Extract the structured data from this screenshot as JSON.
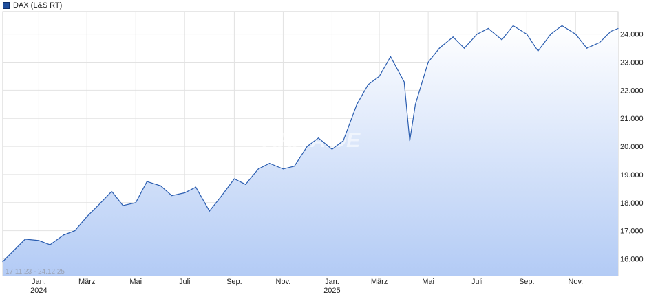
{
  "legend": {
    "label": "DAX (L&S RT)",
    "color": "#1f4e9c"
  },
  "date_range": "17.11.23 - 24.12.25",
  "watermark": "ARIVA.DE",
  "chart_data": {
    "type": "area",
    "series": [
      {
        "name": "DAX (L&S RT)",
        "color": "#2a5db0",
        "x": [
          "17.11.23",
          "01.12.23",
          "15.12.23",
          "01.01.24",
          "15.01.24",
          "01.02.24",
          "15.02.24",
          "01.03.24",
          "15.03.24",
          "01.04.24",
          "15.04.24",
          "01.05.24",
          "15.05.24",
          "01.06.24",
          "15.06.24",
          "01.07.24",
          "15.07.24",
          "01.08.24",
          "15.08.24",
          "01.09.24",
          "15.09.24",
          "01.10.24",
          "15.10.24",
          "01.11.24",
          "15.11.24",
          "01.12.24",
          "15.12.24",
          "01.01.25",
          "15.01.25",
          "01.02.25",
          "15.02.25",
          "01.03.25",
          "15.03.25",
          "01.04.25",
          "08.04.25",
          "15.04.25",
          "01.05.25",
          "15.05.25",
          "01.06.25",
          "15.06.25",
          "01.07.25",
          "15.07.25",
          "01.08.25",
          "15.08.25",
          "01.09.25",
          "15.09.25",
          "01.10.25",
          "15.10.25",
          "01.11.25",
          "15.11.25",
          "01.12.25",
          "15.12.25",
          "24.12.25"
        ],
        "values": [
          15900,
          16300,
          16700,
          16650,
          16500,
          16850,
          17000,
          17500,
          17900,
          18400,
          17900,
          18000,
          18750,
          18600,
          18250,
          18350,
          18550,
          17700,
          18200,
          18850,
          18650,
          19200,
          19400,
          19200,
          19300,
          20000,
          20300,
          19900,
          20200,
          21500,
          22200,
          22500,
          23200,
          22300,
          20200,
          21500,
          23000,
          23500,
          23900,
          23500,
          24000,
          24200,
          23800,
          24300,
          24000,
          23400,
          24000,
          24300,
          24000,
          23500,
          23700,
          24100,
          24200
        ]
      }
    ],
    "x_tick_labels": [
      {
        "label": "Jan.",
        "sub": "2024",
        "date": "01.01.24"
      },
      {
        "label": "März",
        "sub": "",
        "date": "01.03.24"
      },
      {
        "label": "Mai",
        "sub": "",
        "date": "01.05.24"
      },
      {
        "label": "Juli",
        "sub": "",
        "date": "01.07.24"
      },
      {
        "label": "Sep.",
        "sub": "",
        "date": "01.09.24"
      },
      {
        "label": "Nov.",
        "sub": "",
        "date": "01.11.24"
      },
      {
        "label": "Jan.",
        "sub": "2025",
        "date": "01.01.25"
      },
      {
        "label": "März",
        "sub": "",
        "date": "01.03.25"
      },
      {
        "label": "Mai",
        "sub": "",
        "date": "01.05.25"
      },
      {
        "label": "Juli",
        "sub": "",
        "date": "01.07.25"
      },
      {
        "label": "Sep.",
        "sub": "",
        "date": "01.09.25"
      },
      {
        "label": "Nov.",
        "sub": "",
        "date": "01.11.25"
      }
    ],
    "y_ticks": [
      16000,
      17000,
      18000,
      19000,
      20000,
      21000,
      22000,
      23000,
      24000
    ],
    "y_tick_labels": [
      "16.000",
      "17.000",
      "18.000",
      "19.000",
      "20.000",
      "21.000",
      "22.000",
      "23.000",
      "24.000"
    ],
    "ylim": [
      15400,
      24800
    ],
    "xlim": [
      "17.11.23",
      "24.12.25"
    ],
    "grid": true,
    "y_axis_position": "right",
    "legend_position": "top-left"
  }
}
